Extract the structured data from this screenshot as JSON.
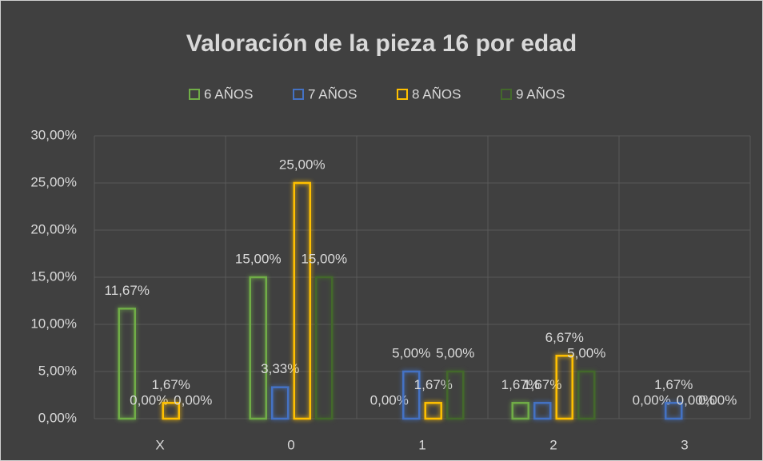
{
  "chart_data": {
    "type": "bar",
    "title": "Valoración de la pieza 16 por edad",
    "categories": [
      "X",
      "0",
      "1",
      "2",
      "3"
    ],
    "series": [
      {
        "name": "6 AÑOS",
        "color": "#70ad47",
        "values": [
          11.67,
          15,
          0,
          1.67,
          0
        ],
        "value_labels": [
          "11,67%",
          "15,00%",
          "0,00%",
          "1,67%",
          "0,00%"
        ]
      },
      {
        "name": "7 AÑOS",
        "color": "#4472c4",
        "values": [
          0,
          3.33,
          5,
          1.67,
          1.67
        ],
        "value_labels": [
          "0,00%",
          "3,33%",
          "5,00%",
          "1,67%",
          "1,67%"
        ]
      },
      {
        "name": "8 AÑOS",
        "color": "#ffc000",
        "values": [
          1.67,
          25,
          1.67,
          6.67,
          0
        ],
        "value_labels": [
          "1,67%",
          "25,00%",
          "1,67%",
          "6,67%",
          "0,00%"
        ]
      },
      {
        "name": "9 AÑOS",
        "color": "#43682b",
        "values": [
          0,
          15,
          5,
          5,
          0
        ],
        "value_labels": [
          "0,00%",
          "15,00%",
          "5,00%",
          "5,00%",
          "0,00%"
        ]
      }
    ],
    "ylim": [
      0,
      30
    ],
    "yticks": [
      {
        "value": 0,
        "label": "0,00%"
      },
      {
        "value": 5,
        "label": "5,00%"
      },
      {
        "value": 10,
        "label": "10,00%"
      },
      {
        "value": 15,
        "label": "15,00%"
      },
      {
        "value": 20,
        "label": "20,00%"
      },
      {
        "value": 25,
        "label": "25,00%"
      },
      {
        "value": 30,
        "label": "30,00%"
      }
    ],
    "grid": true,
    "legend": "top"
  }
}
